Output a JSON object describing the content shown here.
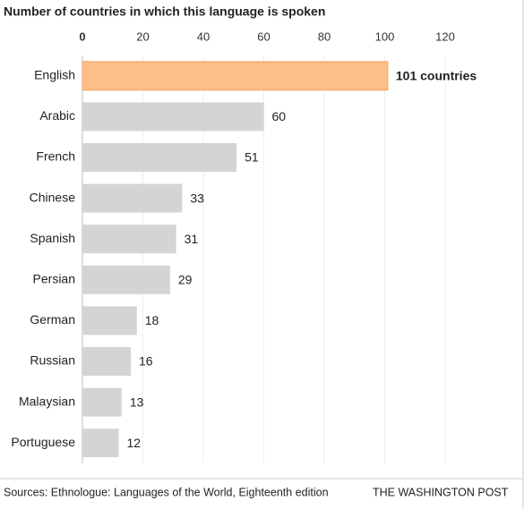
{
  "chart_data": {
    "type": "bar",
    "orientation": "horizontal",
    "title": "Number of countries in which this language is spoken",
    "categories": [
      "English",
      "Arabic",
      "French",
      "Chinese",
      "Spanish",
      "Persian",
      "German",
      "Russian",
      "Malaysian",
      "Portuguese"
    ],
    "values": [
      101,
      60,
      51,
      33,
      31,
      29,
      18,
      16,
      13,
      12
    ],
    "value_labels": [
      "101 countries",
      "60",
      "51",
      "33",
      "31",
      "29",
      "18",
      "16",
      "13",
      "12"
    ],
    "colors": [
      "#fdbf87",
      "#d4d4d4",
      "#d4d4d4",
      "#d4d4d4",
      "#d4d4d4",
      "#d4d4d4",
      "#d4d4d4",
      "#d4d4d4",
      "#d4d4d4",
      "#d4d4d4"
    ],
    "xlim": [
      0,
      120
    ],
    "xticks": [
      0,
      20,
      40,
      60,
      80,
      100,
      120
    ],
    "grid": true,
    "source": "Sources: Ethnologue: Languages of the World, Eighteenth edition",
    "credit": "THE WASHINGTON POST"
  }
}
